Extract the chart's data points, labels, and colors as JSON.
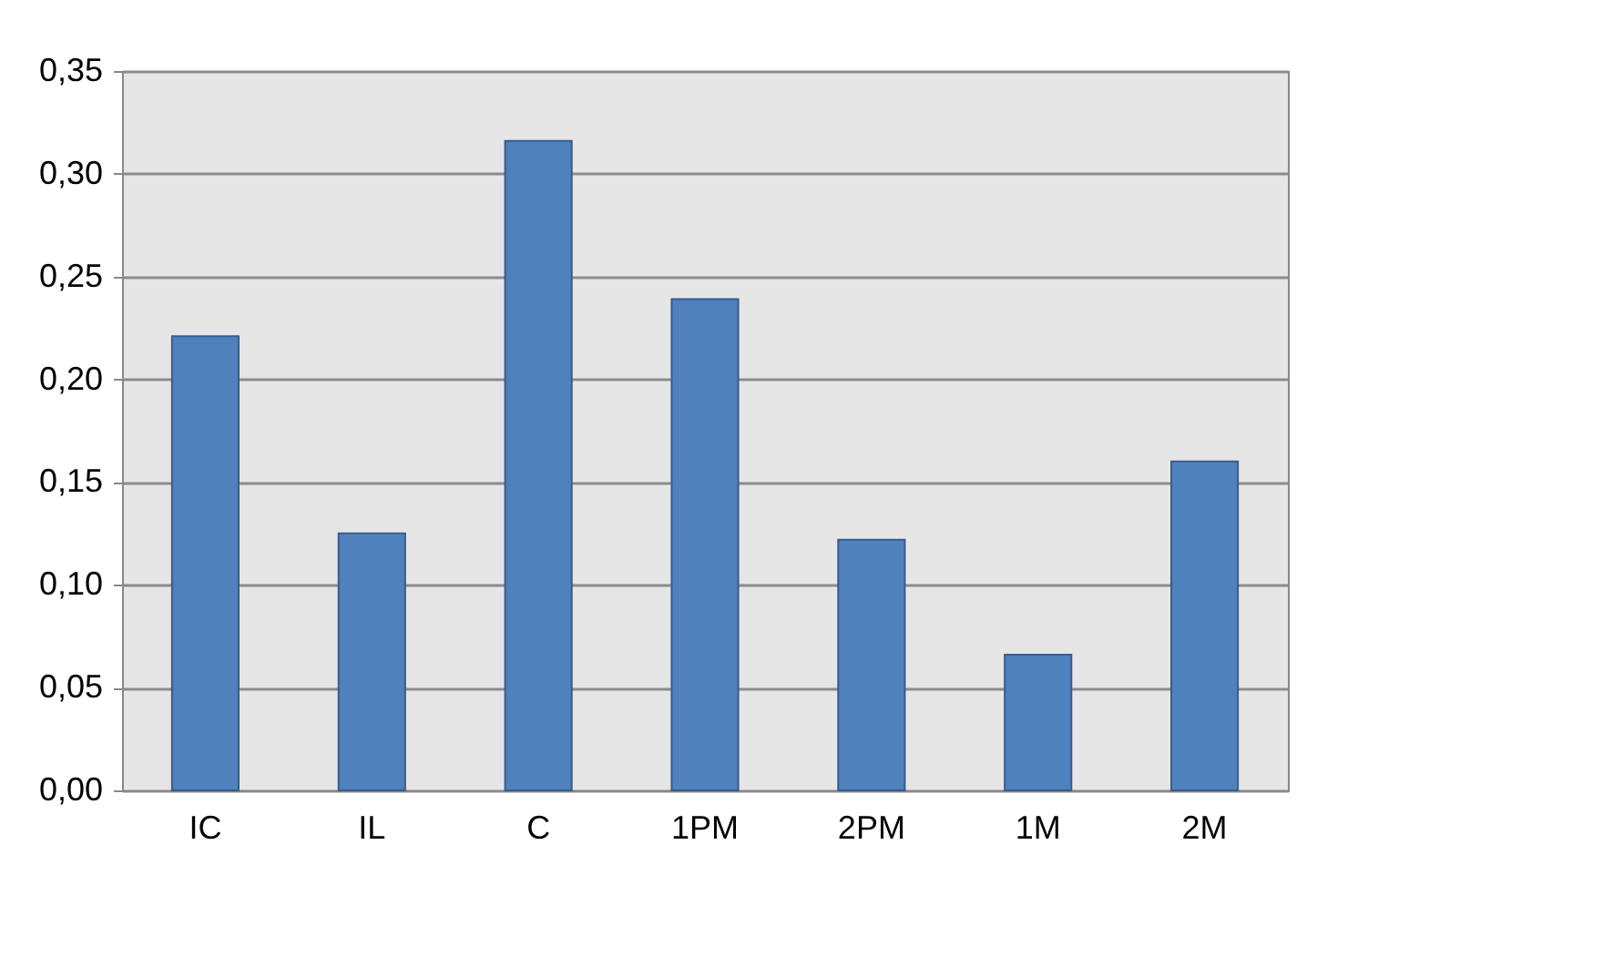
{
  "chart_data": {
    "type": "bar",
    "categories": [
      "IC",
      "IL",
      "C",
      "1PM",
      "2PM",
      "1M",
      "2M"
    ],
    "values": [
      0.221,
      0.125,
      0.316,
      0.239,
      0.122,
      0.066,
      0.16
    ],
    "color": "#4f81bd",
    "ylim": [
      0,
      0.35
    ],
    "yticks": [
      {
        "value": 0,
        "label": "0,00"
      },
      {
        "value": 0.05,
        "label": "0,05"
      },
      {
        "value": 0.1,
        "label": "0,10"
      },
      {
        "value": 0.15,
        "label": "0,15"
      },
      {
        "value": 0.2,
        "label": "0,20"
      },
      {
        "value": 0.25,
        "label": "0,25"
      },
      {
        "value": 0.3,
        "label": "0,30"
      },
      {
        "value": 0.35,
        "label": "0,35"
      }
    ],
    "grid": "y"
  }
}
